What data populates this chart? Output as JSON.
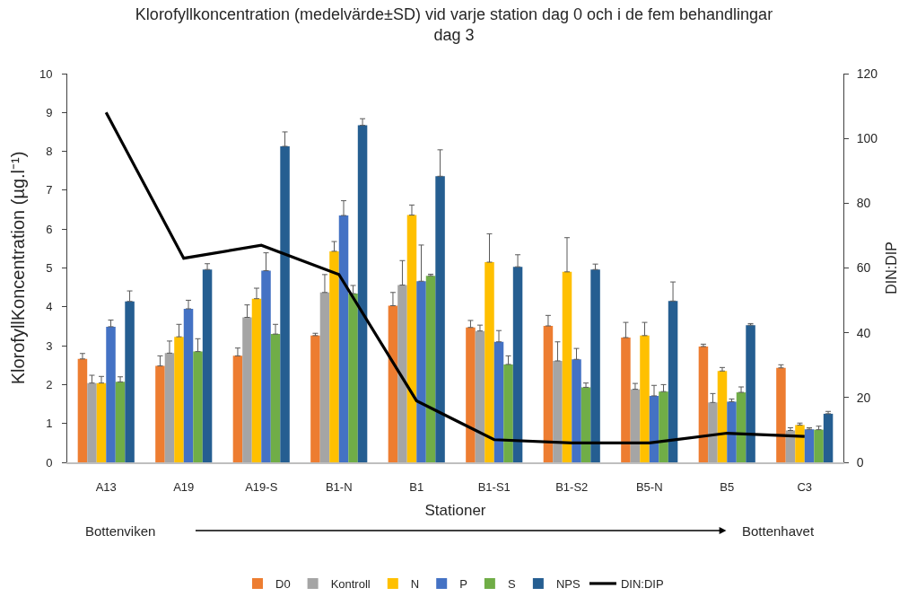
{
  "chart_data": {
    "type": "bar",
    "title": "Klorofyllkoncentration (medelvärde±SD) vid varje station dag 0 och i de fem behandlingar dag 3",
    "xlabel": "Stationer",
    "ylabel": "KlorofyllKoncentration (µg.l⁻¹)",
    "y2label": "DIN:DIP",
    "categories": [
      "A13",
      "A19",
      "A19-S",
      "B1-N",
      "B1",
      "B1-S1",
      "B1-S2",
      "B5-N",
      "B5",
      "C3"
    ],
    "series": [
      {
        "name": "D0",
        "color": "#ed7d31",
        "values": [
          2.66,
          2.48,
          2.74,
          3.26,
          4.03,
          3.47,
          3.51,
          3.21,
          2.98,
          2.43
        ],
        "errors": [
          [
            2.66,
            2.8
          ],
          [
            2.48,
            2.74
          ],
          [
            2.74,
            2.94
          ],
          [
            3.26,
            3.32
          ],
          [
            4.03,
            4.37
          ],
          [
            3.47,
            3.65
          ],
          [
            3.51,
            3.78
          ],
          [
            3.21,
            3.6
          ],
          [
            2.98,
            3.04
          ],
          [
            2.43,
            2.51
          ]
        ]
      },
      {
        "name": "Kontroll",
        "color": "#a5a5a5",
        "values": [
          2.04,
          2.81,
          3.73,
          4.37,
          4.56,
          3.38,
          2.61,
          1.88,
          1.54,
          0.82
        ],
        "errors": [
          [
            2.04,
            2.24
          ],
          [
            2.81,
            3.12
          ],
          [
            3.73,
            4.05
          ],
          [
            4.37,
            4.83
          ],
          [
            4.56,
            5.19
          ],
          [
            3.38,
            3.53
          ],
          [
            2.61,
            3.1
          ],
          [
            1.88,
            2.03
          ],
          [
            1.54,
            1.77
          ],
          [
            0.82,
            0.89
          ]
        ]
      },
      {
        "name": "N",
        "color": "#ffc000",
        "values": [
          2.04,
          3.23,
          4.21,
          5.43,
          6.36,
          5.15,
          4.9,
          3.26,
          2.35,
          0.96
        ],
        "errors": [
          [
            2.04,
            2.21
          ],
          [
            3.23,
            3.55
          ],
          [
            4.21,
            4.48
          ],
          [
            5.43,
            5.68
          ],
          [
            6.36,
            6.62
          ],
          [
            5.15,
            5.88
          ],
          [
            4.9,
            5.78
          ],
          [
            3.26,
            3.6
          ],
          [
            2.35,
            2.44
          ],
          [
            0.96,
            1.01
          ]
        ]
      },
      {
        "name": "P",
        "color": "#4472c4",
        "values": [
          3.49,
          3.95,
          4.93,
          6.35,
          4.66,
          3.1,
          2.65,
          1.71,
          1.56,
          0.85
        ],
        "errors": [
          [
            3.49,
            3.66
          ],
          [
            3.95,
            4.17
          ],
          [
            4.93,
            5.39
          ],
          [
            6.35,
            6.73
          ],
          [
            4.66,
            5.59
          ],
          [
            3.1,
            3.39
          ],
          [
            2.65,
            2.93
          ],
          [
            1.71,
            1.98
          ],
          [
            1.56,
            1.63
          ],
          [
            0.85,
            0.89
          ]
        ]
      },
      {
        "name": "S",
        "color": "#70ad47",
        "values": [
          2.07,
          2.85,
          3.3,
          4.34,
          4.8,
          2.52,
          1.93,
          1.82,
          1.8,
          0.84
        ],
        "errors": [
          [
            2.07,
            2.2
          ],
          [
            2.85,
            3.18
          ],
          [
            3.3,
            3.55
          ],
          [
            4.34,
            4.55
          ],
          [
            4.8,
            4.84
          ],
          [
            2.52,
            2.74
          ],
          [
            1.93,
            2.04
          ],
          [
            1.82,
            2.0
          ],
          [
            1.8,
            1.94
          ],
          [
            0.84,
            0.93
          ]
        ]
      },
      {
        "name": "NPS",
        "color": "#255e91",
        "values": [
          4.14,
          4.96,
          8.13,
          8.67,
          7.36,
          5.03,
          4.96,
          4.15,
          3.53,
          1.25
        ],
        "errors": [
          [
            4.14,
            4.41
          ],
          [
            4.96,
            5.11
          ],
          [
            8.13,
            8.5
          ],
          [
            8.67,
            8.84
          ],
          [
            7.36,
            8.04
          ],
          [
            5.03,
            5.34
          ],
          [
            4.96,
            5.1
          ],
          [
            4.15,
            4.64
          ],
          [
            3.53,
            3.57
          ],
          [
            1.25,
            1.31
          ]
        ]
      },
      {
        "name": "DIN:DIP",
        "type": "line",
        "axis": "y2",
        "color": "#000000",
        "line_style": "solid",
        "values": [
          108,
          63,
          67,
          58,
          19,
          7,
          6,
          6,
          9,
          8
        ]
      }
    ],
    "ylim": [
      0,
      10
    ],
    "yticks": [
      0,
      1,
      2,
      3,
      4,
      5,
      6,
      7,
      8,
      9,
      10
    ],
    "y2lim": [
      0,
      120
    ],
    "y2ticks": [
      0,
      20,
      40,
      60,
      80,
      100,
      120
    ],
    "legend": "bottom",
    "annotations": [
      "Bottenviken",
      "Bottenhavet"
    ]
  }
}
